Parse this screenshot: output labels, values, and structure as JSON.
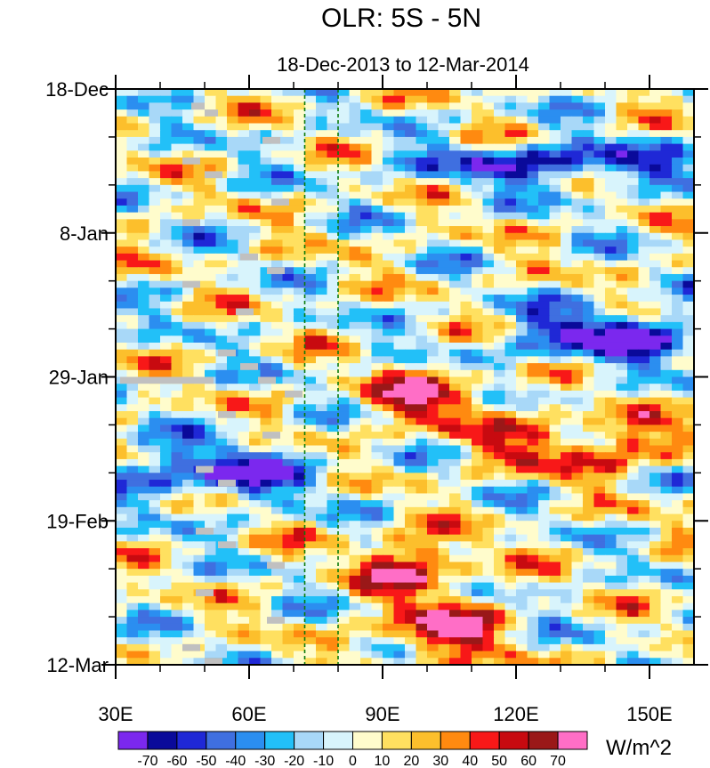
{
  "chart_data": {
    "type": "heatmap",
    "title": "OLR: 5S - 5N",
    "subtitle": "18-Dec-2013 to 12-Mar-2014",
    "x_axis": {
      "range": [
        30,
        160
      ],
      "ticks": [
        30,
        60,
        90,
        120,
        150
      ],
      "tick_labels": [
        "30E",
        "60E",
        "90E",
        "120E",
        "150E"
      ]
    },
    "y_axis": {
      "range_days": [
        0,
        84
      ],
      "ticks": [
        0,
        21,
        42,
        63,
        84
      ],
      "tick_labels": [
        "18-Dec",
        "8-Jan",
        "29-Jan",
        "19-Feb",
        "12-Mar"
      ],
      "minor_every_days": 7
    },
    "reference_lines_lon": [
      72.5,
      80
    ],
    "colorbar": {
      "unit": "W/m^2",
      "levels": [
        -70,
        -60,
        -50,
        -40,
        -30,
        -20,
        -10,
        0,
        10,
        20,
        30,
        40,
        50,
        60,
        70
      ],
      "level_labels": [
        "-70",
        "-60",
        "-50",
        "-40",
        "-30",
        "-20",
        "-10",
        "0",
        "10",
        "20",
        "30",
        "40",
        "50",
        "60",
        "70"
      ],
      "colors": [
        "#7b28ee",
        "#0a0a9a",
        "#1f28d6",
        "#3f6fe0",
        "#2b8ef0",
        "#22c0f8",
        "#a8d8f8",
        "#d8f4fc",
        "#fffccc",
        "#ffe060",
        "#fcbf2c",
        "#ff8a10",
        "#f81818",
        "#c80a10",
        "#9a1818",
        "#ff6ec6"
      ]
    },
    "features": [
      {
        "lon": [
          85,
          115
        ],
        "day": [
          41,
          49
        ],
        "anomaly": 45
      },
      {
        "lon": [
          110,
          160
        ],
        "day": [
          48,
          56
        ],
        "anomaly": 40
      },
      {
        "lon": [
          83,
          110
        ],
        "day": [
          65,
          73
        ],
        "anomaly": 50
      },
      {
        "lon": [
          90,
          115
        ],
        "day": [
          74,
          84
        ],
        "anomaly": 55
      },
      {
        "lon": [
          30,
          75
        ],
        "day": [
          52,
          60
        ],
        "anomaly": -50
      },
      {
        "lon": [
          100,
          160
        ],
        "day": [
          8,
          14
        ],
        "anomaly": -50
      },
      {
        "lon": [
          120,
          160
        ],
        "day": [
          32,
          40
        ],
        "anomaly": -60
      }
    ],
    "missing_data_blocks": [
      {
        "lon": [
          47,
          50
        ],
        "day": [
          2,
          3
        ]
      },
      {
        "lon": [
          50,
          53
        ],
        "day": [
          3,
          4
        ]
      },
      {
        "lon": [
          63,
          67
        ],
        "day": [
          7,
          8
        ]
      },
      {
        "lon": [
          45,
          49
        ],
        "day": [
          10,
          11
        ]
      },
      {
        "lon": [
          50,
          54
        ],
        "day": [
          12,
          13
        ]
      },
      {
        "lon": [
          65,
          69
        ],
        "day": [
          16,
          17
        ]
      },
      {
        "lon": [
          45,
          49
        ],
        "day": [
          19,
          20
        ]
      },
      {
        "lon": [
          58,
          62
        ],
        "day": [
          24,
          25
        ]
      },
      {
        "lon": [
          64,
          68
        ],
        "day": [
          26,
          27
        ]
      },
      {
        "lon": [
          45,
          49
        ],
        "day": [
          28,
          29
        ]
      },
      {
        "lon": [
          57,
          61
        ],
        "day": [
          32,
          33
        ]
      },
      {
        "lon": [
          53,
          57
        ],
        "day": [
          38,
          39
        ]
      },
      {
        "lon": [
          58,
          62
        ],
        "day": [
          40,
          41
        ]
      },
      {
        "lon": [
          31,
          52
        ],
        "day": [
          42,
          43
        ]
      },
      {
        "lon": [
          62,
          66
        ],
        "day": [
          42,
          43
        ]
      },
      {
        "lon": [
          68,
          72
        ],
        "day": [
          44,
          45
        ]
      },
      {
        "lon": [
          53,
          57
        ],
        "day": [
          47,
          48
        ]
      },
      {
        "lon": [
          63,
          67
        ],
        "day": [
          50,
          51
        ]
      },
      {
        "lon": [
          48,
          52
        ],
        "day": [
          55,
          56
        ]
      },
      {
        "lon": [
          53,
          57
        ],
        "day": [
          57,
          58
        ]
      },
      {
        "lon": [
          48,
          52
        ],
        "day": [
          64,
          65
        ]
      },
      {
        "lon": [
          53,
          57
        ],
        "day": [
          66,
          67
        ]
      },
      {
        "lon": [
          64,
          68
        ],
        "day": [
          69,
          70
        ]
      },
      {
        "lon": [
          48,
          52
        ],
        "day": [
          73,
          74
        ]
      },
      {
        "lon": [
          64,
          68
        ],
        "day": [
          77,
          78
        ]
      },
      {
        "lon": [
          45,
          49
        ],
        "day": [
          81,
          82
        ]
      },
      {
        "lon": [
          50,
          54
        ],
        "day": [
          83,
          84
        ]
      }
    ]
  }
}
